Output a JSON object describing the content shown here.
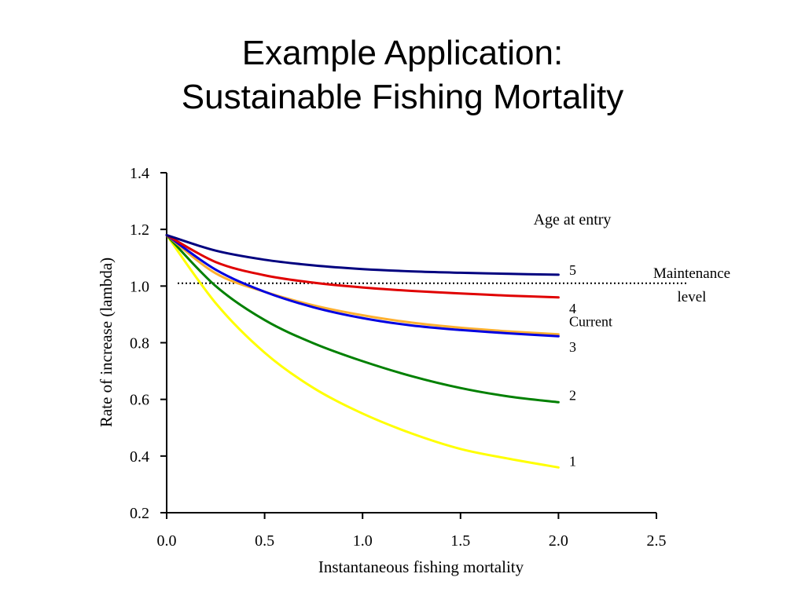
{
  "slide": {
    "title_line1": "Example Application:",
    "title_line2": "Sustainable Fishing Mortality"
  },
  "chart_data": {
    "type": "line",
    "xlabel": "Instantaneous fishing mortality",
    "ylabel": "Rate of increase (lambda)",
    "xlim": [
      0,
      2.5
    ],
    "ylim": [
      0.2,
      1.4
    ],
    "xticks": [
      "0.0",
      "0.5",
      "1.0",
      "1.5",
      "2.0",
      "2.5"
    ],
    "yticks": [
      "0.2",
      "0.4",
      "0.6",
      "0.8",
      "1.0",
      "1.2",
      "1.4"
    ],
    "grid": false,
    "legend_title": "Age at entry",
    "x": [
      0,
      0.25,
      0.5,
      0.75,
      1.0,
      1.25,
      1.5,
      1.75,
      2.0
    ],
    "series": [
      {
        "name": "5",
        "color": "#00007f",
        "values": [
          1.18,
          1.125,
          1.093,
          1.073,
          1.06,
          1.052,
          1.047,
          1.043,
          1.04
        ]
      },
      {
        "name": "4",
        "color": "#e00000",
        "values": [
          1.18,
          1.085,
          1.038,
          1.012,
          0.995,
          0.983,
          0.974,
          0.966,
          0.96
        ]
      },
      {
        "name": "Current",
        "color": "#ffb030",
        "values": [
          1.18,
          1.045,
          0.98,
          0.932,
          0.897,
          0.871,
          0.853,
          0.84,
          0.83
        ]
      },
      {
        "name": "3",
        "color": "#0000e0",
        "values": [
          1.18,
          1.058,
          0.98,
          0.925,
          0.887,
          0.861,
          0.845,
          0.833,
          0.823
        ]
      },
      {
        "name": "2",
        "color": "#008000",
        "values": [
          1.18,
          1.0,
          0.88,
          0.798,
          0.735,
          0.682,
          0.64,
          0.61,
          0.59
        ]
      },
      {
        "name": "1",
        "color": "#ffff00",
        "values": [
          1.18,
          0.94,
          0.765,
          0.64,
          0.55,
          0.48,
          0.425,
          0.39,
          0.36
        ]
      }
    ],
    "reference_line": {
      "y": 1.01,
      "label_line1": "Maintenance",
      "label_line2": "level",
      "style": "dotted"
    }
  }
}
